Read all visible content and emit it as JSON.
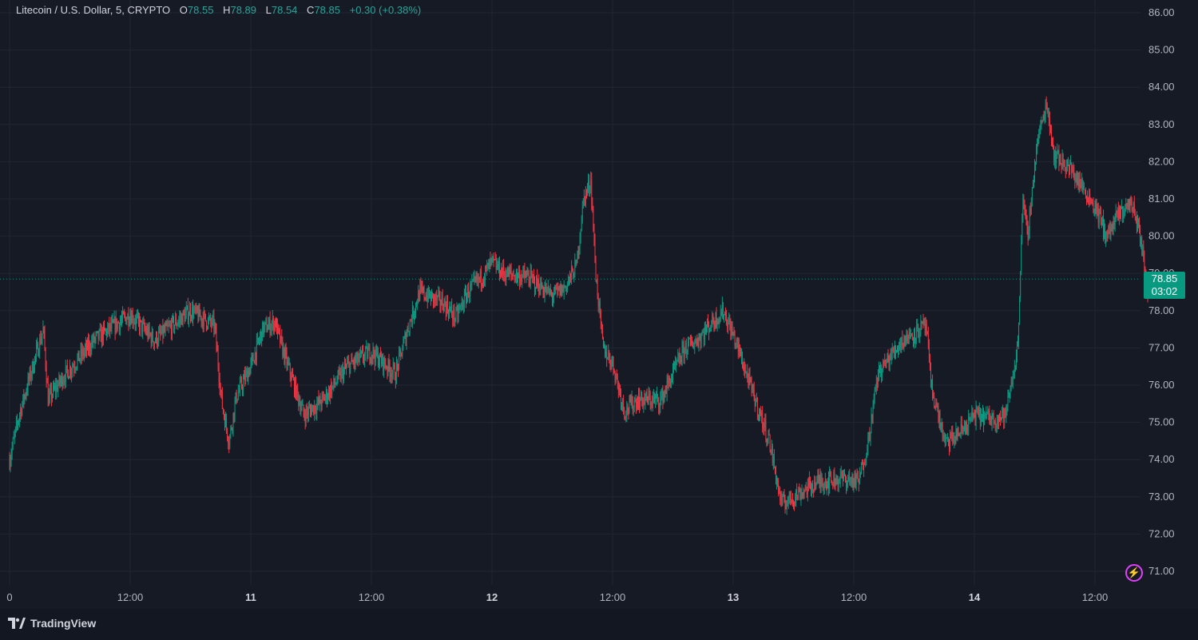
{
  "legend": {
    "symbol": "Litecoin / U.S. Dollar, 5, CRYPTO",
    "o_label": "O",
    "o_value": "78.55",
    "h_label": "H",
    "h_value": "78.89",
    "l_label": "L",
    "l_value": "78.54",
    "c_label": "C",
    "c_value": "78.85",
    "change": "+0.30 (+0.38%)"
  },
  "price_tag": {
    "price": "78.85",
    "countdown": "03:02"
  },
  "branding": {
    "name": "TradingView"
  },
  "colors": {
    "background": "#161a25",
    "grid": "#232632",
    "up": "#089981",
    "down": "#f23645",
    "last_price": "#089981"
  },
  "chart_data": {
    "type": "candlestick",
    "interval": "5",
    "y_axis": {
      "ticks": [
        "71.00",
        "72.00",
        "73.00",
        "74.00",
        "75.00",
        "76.00",
        "77.00",
        "78.00",
        "79.00",
        "80.00",
        "81.00",
        "82.00",
        "83.00",
        "84.00",
        "85.00",
        "86.00"
      ],
      "range": [
        70.8,
        86.2
      ]
    },
    "x_axis": {
      "labels": [
        {
          "text": "0",
          "day": false
        },
        {
          "text": "12:00",
          "day": false
        },
        {
          "text": "11",
          "day": true
        },
        {
          "text": "12:00",
          "day": false
        },
        {
          "text": "12",
          "day": true
        },
        {
          "text": "12:00",
          "day": false
        },
        {
          "text": "13",
          "day": true
        },
        {
          "text": "12:00",
          "day": false
        },
        {
          "text": "14",
          "day": true
        },
        {
          "text": "12:00",
          "day": false
        }
      ]
    },
    "last_price": 78.85,
    "grid": true,
    "path": [
      [
        0,
        74.0
      ],
      [
        0.04,
        75.2
      ],
      [
        0.1,
        76.6
      ],
      [
        0.14,
        77.5
      ],
      [
        0.16,
        75.6
      ],
      [
        0.22,
        76.2
      ],
      [
        0.35,
        77.2
      ],
      [
        0.5,
        77.9
      ],
      [
        0.6,
        77.2
      ],
      [
        0.75,
        78.0
      ],
      [
        0.85,
        77.6
      ],
      [
        0.88,
        75.5
      ],
      [
        0.91,
        74.5
      ],
      [
        0.94,
        75.7
      ],
      [
        1.0,
        76.5
      ],
      [
        1.05,
        77.5
      ],
      [
        1.1,
        77.7
      ],
      [
        1.13,
        77.0
      ],
      [
        1.22,
        75.2
      ],
      [
        1.3,
        75.6
      ],
      [
        1.4,
        76.5
      ],
      [
        1.5,
        76.9
      ],
      [
        1.6,
        76.3
      ],
      [
        1.65,
        77.5
      ],
      [
        1.7,
        78.5
      ],
      [
        1.8,
        78.2
      ],
      [
        1.85,
        77.8
      ],
      [
        1.9,
        78.5
      ],
      [
        1.97,
        79.0
      ],
      [
        2.0,
        79.3
      ],
      [
        2.05,
        79.0
      ],
      [
        2.15,
        78.9
      ],
      [
        2.25,
        78.4
      ],
      [
        2.3,
        78.6
      ],
      [
        2.35,
        79.2
      ],
      [
        2.38,
        81.0
      ],
      [
        2.41,
        81.5
      ],
      [
        2.43,
        79.0
      ],
      [
        2.46,
        77.0
      ],
      [
        2.5,
        76.6
      ],
      [
        2.55,
        75.3
      ],
      [
        2.6,
        75.6
      ],
      [
        2.7,
        75.6
      ],
      [
        2.8,
        77.0
      ],
      [
        2.85,
        77.2
      ],
      [
        2.9,
        77.6
      ],
      [
        2.96,
        78.0
      ],
      [
        3.02,
        77.0
      ],
      [
        3.08,
        75.8
      ],
      [
        3.15,
        74.5
      ],
      [
        3.2,
        72.8
      ],
      [
        3.25,
        73.0
      ],
      [
        3.35,
        73.4
      ],
      [
        3.45,
        73.5
      ],
      [
        3.52,
        73.4
      ],
      [
        3.56,
        74.5
      ],
      [
        3.6,
        76.3
      ],
      [
        3.7,
        77.2
      ],
      [
        3.8,
        77.6
      ],
      [
        3.82,
        76.0
      ],
      [
        3.88,
        74.4
      ],
      [
        3.95,
        74.8
      ],
      [
        4.0,
        75.2
      ],
      [
        4.08,
        75.1
      ],
      [
        4.13,
        75.2
      ],
      [
        4.18,
        77.0
      ],
      [
        4.2,
        81.0
      ],
      [
        4.22,
        80.0
      ],
      [
        4.26,
        82.5
      ],
      [
        4.3,
        83.6
      ],
      [
        4.33,
        82.2
      ],
      [
        4.4,
        81.8
      ],
      [
        4.5,
        80.8
      ],
      [
        4.55,
        80.0
      ],
      [
        4.6,
        80.6
      ],
      [
        4.65,
        80.9
      ],
      [
        4.68,
        80.3
      ],
      [
        4.72,
        78.5
      ],
      [
        4.75,
        78.85
      ]
    ]
  }
}
